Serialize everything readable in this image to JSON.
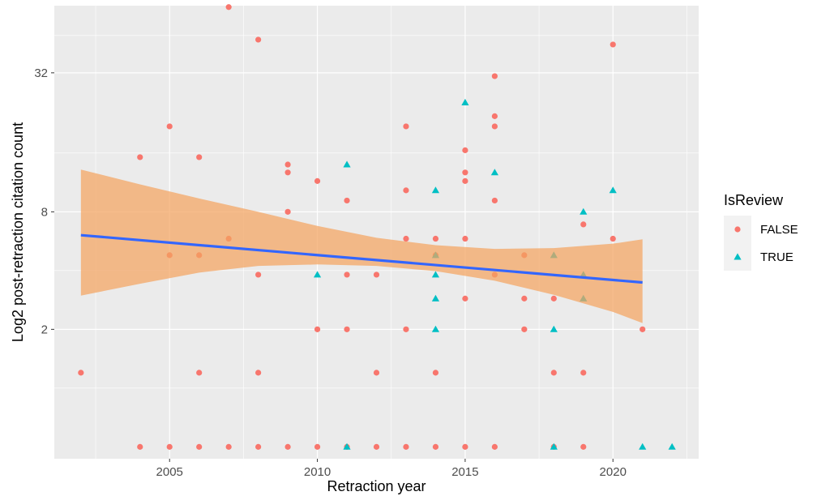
{
  "chart_data": {
    "type": "scatter",
    "xlabel": "Retraction year",
    "ylabel": "Log2 post-retraction citation count",
    "x_ticks": [
      2005,
      2010,
      2015,
      2020
    ],
    "y_ticks": [
      {
        "value": 2,
        "label": "2"
      },
      {
        "value": 8,
        "label": "8"
      },
      {
        "value": 32,
        "label": "32"
      }
    ],
    "xlim": [
      2001.1,
      2022.9
    ],
    "ylim_log2": [
      -0.16,
      5.95
    ],
    "y_scale": "log2",
    "grid": true,
    "legend": {
      "title": "IsReview",
      "placement": "right",
      "entries": [
        {
          "label": "FALSE",
          "shape": "circle",
          "color": "#F8766D"
        },
        {
          "label": "TRUE",
          "shape": "triangle",
          "color": "#00BFC4"
        }
      ]
    },
    "series": [
      {
        "name": "FALSE",
        "shape": "circle",
        "color": "#F8766D",
        "points": [
          {
            "x": 2002,
            "y": 1
          },
          {
            "x": 2004,
            "y": 0
          },
          {
            "x": 2004,
            "y": 14
          },
          {
            "x": 2005,
            "y": 0
          },
          {
            "x": 2005,
            "y": 19
          },
          {
            "x": 2005,
            "y": 5
          },
          {
            "x": 2006,
            "y": 0
          },
          {
            "x": 2006,
            "y": 1
          },
          {
            "x": 2006,
            "y": 14
          },
          {
            "x": 2006,
            "y": 5
          },
          {
            "x": 2007,
            "y": 0
          },
          {
            "x": 2007,
            "y": 60
          },
          {
            "x": 2007,
            "y": 6
          },
          {
            "x": 2008,
            "y": 0
          },
          {
            "x": 2008,
            "y": 1
          },
          {
            "x": 2008,
            "y": 4
          },
          {
            "x": 2008,
            "y": 44
          },
          {
            "x": 2009,
            "y": 0
          },
          {
            "x": 2009,
            "y": 13
          },
          {
            "x": 2009,
            "y": 12
          },
          {
            "x": 2009,
            "y": 8
          },
          {
            "x": 2010,
            "y": 0
          },
          {
            "x": 2010,
            "y": 2
          },
          {
            "x": 2010,
            "y": 11
          },
          {
            "x": 2011,
            "y": 0
          },
          {
            "x": 2011,
            "y": 2
          },
          {
            "x": 2011,
            "y": 4
          },
          {
            "x": 2011,
            "y": 9
          },
          {
            "x": 2012,
            "y": 0
          },
          {
            "x": 2012,
            "y": 1
          },
          {
            "x": 2012,
            "y": 4
          },
          {
            "x": 2013,
            "y": 0
          },
          {
            "x": 2013,
            "y": 2
          },
          {
            "x": 2013,
            "y": 6
          },
          {
            "x": 2013,
            "y": 10
          },
          {
            "x": 2013,
            "y": 19
          },
          {
            "x": 2014,
            "y": 0
          },
          {
            "x": 2014,
            "y": 1
          },
          {
            "x": 2014,
            "y": 5
          },
          {
            "x": 2014,
            "y": 6
          },
          {
            "x": 2015,
            "y": 0
          },
          {
            "x": 2015,
            "y": 3
          },
          {
            "x": 2015,
            "y": 6
          },
          {
            "x": 2015,
            "y": 11
          },
          {
            "x": 2015,
            "y": 12
          },
          {
            "x": 2015,
            "y": 15
          },
          {
            "x": 2016,
            "y": 0
          },
          {
            "x": 2016,
            "y": 4
          },
          {
            "x": 2016,
            "y": 9
          },
          {
            "x": 2016,
            "y": 19
          },
          {
            "x": 2016,
            "y": 21
          },
          {
            "x": 2016,
            "y": 31
          },
          {
            "x": 2017,
            "y": 2
          },
          {
            "x": 2017,
            "y": 3
          },
          {
            "x": 2017,
            "y": 5
          },
          {
            "x": 2018,
            "y": 0
          },
          {
            "x": 2018,
            "y": 1
          },
          {
            "x": 2018,
            "y": 3
          },
          {
            "x": 2019,
            "y": 0
          },
          {
            "x": 2019,
            "y": 1
          },
          {
            "x": 2019,
            "y": 7
          },
          {
            "x": 2020,
            "y": 6
          },
          {
            "x": 2020,
            "y": 42
          },
          {
            "x": 2021,
            "y": 2
          }
        ]
      },
      {
        "name": "TRUE",
        "shape": "triangle",
        "color": "#00BFC4",
        "points": [
          {
            "x": 2010,
            "y": 4
          },
          {
            "x": 2011,
            "y": 0
          },
          {
            "x": 2011,
            "y": 13
          },
          {
            "x": 2014,
            "y": 2
          },
          {
            "x": 2014,
            "y": 3
          },
          {
            "x": 2014,
            "y": 4
          },
          {
            "x": 2014,
            "y": 5
          },
          {
            "x": 2014,
            "y": 10
          },
          {
            "x": 2015,
            "y": 24
          },
          {
            "x": 2016,
            "y": 12
          },
          {
            "x": 2018,
            "y": 0
          },
          {
            "x": 2018,
            "y": 2
          },
          {
            "x": 2018,
            "y": 5
          },
          {
            "x": 2019,
            "y": 3
          },
          {
            "x": 2019,
            "y": 4
          },
          {
            "x": 2019,
            "y": 8
          },
          {
            "x": 2020,
            "y": 10
          },
          {
            "x": 2021,
            "y": 0
          },
          {
            "x": 2022,
            "y": 0
          }
        ]
      }
    ],
    "trend": {
      "type": "linear-fit",
      "color": "#3366FF",
      "ribbon_color": "#F4A460",
      "line": [
        {
          "x": 2002,
          "log2y": 2.855
        },
        {
          "x": 2021,
          "log2y": 2.217
        }
      ],
      "ribbon": {
        "x": [
          2002,
          2004,
          2006,
          2008,
          2010,
          2012,
          2014,
          2016,
          2018,
          2020,
          2021
        ],
        "upper": [
          3.74,
          3.54,
          3.35,
          3.17,
          2.98,
          2.82,
          2.72,
          2.67,
          2.68,
          2.74,
          2.8
        ],
        "lower": [
          2.04,
          2.2,
          2.35,
          2.44,
          2.46,
          2.44,
          2.37,
          2.24,
          2.05,
          1.82,
          1.67
        ]
      }
    }
  }
}
